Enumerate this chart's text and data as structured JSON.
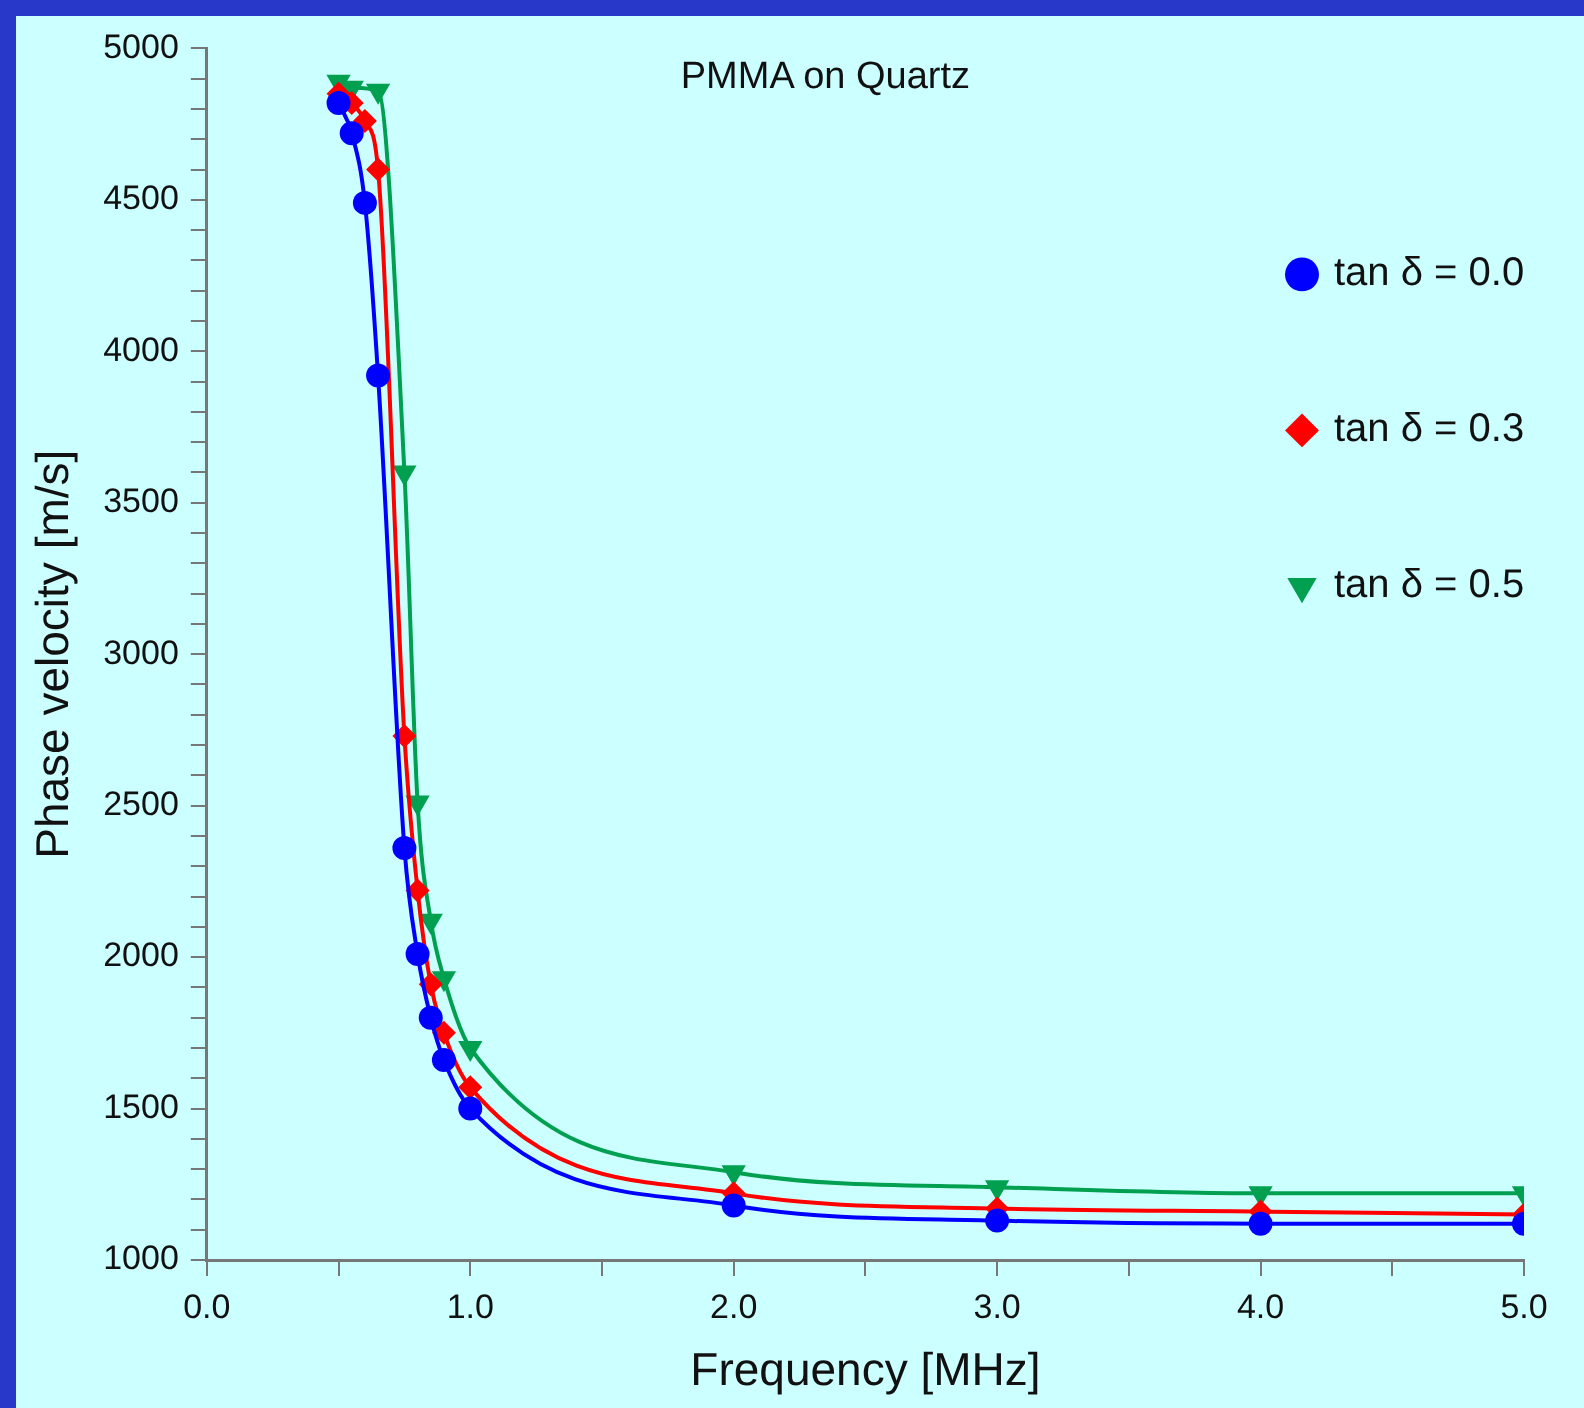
{
  "chart_data": {
    "type": "line",
    "title": "PMMA on Quartz",
    "xlabel": "Frequency [MHz]",
    "ylabel": "Phase velocity [m/s]",
    "xlim": [
      0,
      5
    ],
    "xticks": [
      {
        "value": 0,
        "label": "0.0"
      },
      {
        "value": 0.5,
        "label": null
      },
      {
        "value": 1,
        "label": "1.0"
      },
      {
        "value": 1.5,
        "label": null
      },
      {
        "value": 2,
        "label": "2.0"
      },
      {
        "value": 2.5,
        "label": null
      },
      {
        "value": 3,
        "label": "3.0"
      },
      {
        "value": 3.5,
        "label": null
      },
      {
        "value": 4,
        "label": "4.0"
      },
      {
        "value": 4.5,
        "label": null
      },
      {
        "value": 5,
        "label": "5.0"
      }
    ],
    "ylim": [
      1000,
      5000
    ],
    "yticks": [
      1000,
      {
        "value": 1100,
        "label": null
      },
      {
        "value": 1200,
        "label": null
      },
      {
        "value": 1300,
        "label": null
      },
      {
        "value": 1400,
        "label": null
      },
      1500,
      {
        "value": 1600,
        "label": null
      },
      {
        "value": 1700,
        "label": null
      },
      {
        "value": 1800,
        "label": null
      },
      {
        "value": 1900,
        "label": null
      },
      2000,
      {
        "value": 2100,
        "label": null
      },
      {
        "value": 2200,
        "label": null
      },
      {
        "value": 2300,
        "label": null
      },
      {
        "value": 2400,
        "label": null
      },
      2500,
      {
        "value": 2600,
        "label": null
      },
      {
        "value": 2700,
        "label": null
      },
      {
        "value": 2800,
        "label": null
      },
      {
        "value": 2900,
        "label": null
      },
      3000,
      {
        "value": 3100,
        "label": null
      },
      {
        "value": 3200,
        "label": null
      },
      {
        "value": 3300,
        "label": null
      },
      {
        "value": 3400,
        "label": null
      },
      3500,
      {
        "value": 3600,
        "label": null
      },
      {
        "value": 3700,
        "label": null
      },
      {
        "value": 3800,
        "label": null
      },
      {
        "value": 3900,
        "label": null
      },
      4000,
      {
        "value": 4100,
        "label": null
      },
      {
        "value": 4200,
        "label": null
      },
      {
        "value": 4300,
        "label": null
      },
      {
        "value": 4400,
        "label": null
      },
      4500,
      {
        "value": 4600,
        "label": null
      },
      {
        "value": 4700,
        "label": null
      },
      {
        "value": 4800,
        "label": null
      },
      {
        "value": 4900,
        "label": null
      },
      5000
    ],
    "grid": false,
    "legend": "top right",
    "line_style": "solid",
    "series": [
      {
        "name": "tan δ = 0.0",
        "color": "#0000ff",
        "marker": "circle",
        "x": [
          0.5,
          0.55,
          0.6,
          0.65,
          0.75,
          0.8,
          0.85,
          0.9,
          1,
          2,
          3,
          4,
          5
        ],
        "values": [
          4820,
          4720,
          4490,
          3920,
          2360,
          2010,
          1800,
          1660,
          1500,
          1180,
          1130,
          1120,
          1120
        ]
      },
      {
        "name": "tan δ = 0.3",
        "color": "#ff0000",
        "marker": "diamond",
        "x": [
          0.5,
          0.55,
          0.6,
          0.65,
          0.75,
          0.8,
          0.85,
          0.9,
          1,
          2,
          3,
          4,
          5
        ],
        "values": [
          4850,
          4820,
          4760,
          4600,
          2730,
          2220,
          1910,
          1750,
          1570,
          1220,
          1170,
          1160,
          1150
        ]
      },
      {
        "name": "tan δ = 0.5",
        "color": "#00a050",
        "marker": "triangle",
        "x": [
          0.5,
          0.55,
          0.65,
          0.75,
          0.8,
          0.85,
          0.9,
          1,
          2,
          3,
          4,
          5
        ],
        "values": [
          4890,
          4870,
          4860,
          3600,
          2510,
          2120,
          1930,
          1700,
          1290,
          1240,
          1220,
          1220
        ]
      }
    ]
  }
}
